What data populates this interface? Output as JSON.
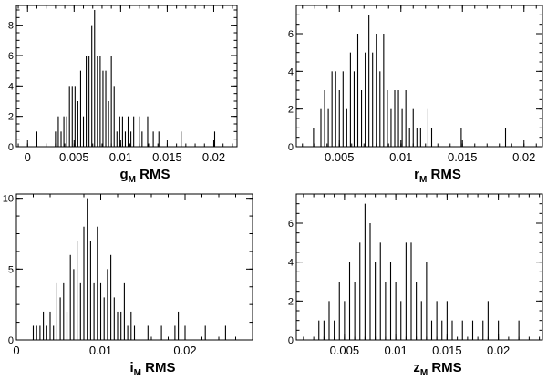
{
  "chart_data": [
    {
      "type": "histogram",
      "xlabel": "g",
      "xlabel_subscript": "M",
      "xlabel_suffix": " RMS",
      "xlim": [
        -0.0012,
        0.0225
      ],
      "ylim": [
        0,
        9.3
      ],
      "x_ticks": [
        0,
        0.005,
        0.01,
        0.015,
        0.02
      ],
      "x_tick_labels": [
        "0",
        "0.005",
        "0.01",
        "0.015",
        "0.02"
      ],
      "y_ticks": [
        0,
        2,
        4,
        6,
        8
      ],
      "y_tick_labels": [
        "0",
        "2",
        "4",
        "6",
        "8"
      ],
      "bins": [
        {
          "x": 0.001,
          "y": 1
        },
        {
          "x": 0.003,
          "y": 1
        },
        {
          "x": 0.0033,
          "y": 2
        },
        {
          "x": 0.0036,
          "y": 1
        },
        {
          "x": 0.0039,
          "y": 2
        },
        {
          "x": 0.0042,
          "y": 2
        },
        {
          "x": 0.0045,
          "y": 4
        },
        {
          "x": 0.0048,
          "y": 4
        },
        {
          "x": 0.0051,
          "y": 4
        },
        {
          "x": 0.0054,
          "y": 3
        },
        {
          "x": 0.0057,
          "y": 5
        },
        {
          "x": 0.006,
          "y": 2
        },
        {
          "x": 0.0063,
          "y": 6
        },
        {
          "x": 0.0066,
          "y": 6
        },
        {
          "x": 0.0069,
          "y": 8
        },
        {
          "x": 0.0072,
          "y": 9
        },
        {
          "x": 0.0075,
          "y": 6
        },
        {
          "x": 0.0078,
          "y": 6
        },
        {
          "x": 0.0081,
          "y": 5
        },
        {
          "x": 0.0084,
          "y": 5
        },
        {
          "x": 0.0087,
          "y": 3
        },
        {
          "x": 0.009,
          "y": 6
        },
        {
          "x": 0.0093,
          "y": 4
        },
        {
          "x": 0.0096,
          "y": 1
        },
        {
          "x": 0.0099,
          "y": 2
        },
        {
          "x": 0.0102,
          "y": 2
        },
        {
          "x": 0.0105,
          "y": 1
        },
        {
          "x": 0.0108,
          "y": 2
        },
        {
          "x": 0.0111,
          "y": 1
        },
        {
          "x": 0.0114,
          "y": 2
        },
        {
          "x": 0.012,
          "y": 2
        },
        {
          "x": 0.0123,
          "y": 1
        },
        {
          "x": 0.0129,
          "y": 2
        },
        {
          "x": 0.0135,
          "y": 1
        },
        {
          "x": 0.0141,
          "y": 1
        },
        {
          "x": 0.0165,
          "y": 1
        },
        {
          "x": 0.0201,
          "y": 1
        }
      ]
    },
    {
      "type": "histogram",
      "xlabel": "r",
      "xlabel_subscript": "M",
      "xlabel_suffix": " RMS",
      "xlim": [
        0.0015,
        0.0215
      ],
      "ylim": [
        0,
        7.5
      ],
      "x_ticks": [
        0.005,
        0.01,
        0.015,
        0.02
      ],
      "x_tick_labels": [
        "0.005",
        "0.01",
        "0.015",
        "0.02"
      ],
      "y_ticks": [
        0,
        2,
        4,
        6
      ],
      "y_tick_labels": [
        "0",
        "2",
        "4",
        "6"
      ],
      "bins": [
        {
          "x": 0.0029,
          "y": 1
        },
        {
          "x": 0.0035,
          "y": 2
        },
        {
          "x": 0.0038,
          "y": 3
        },
        {
          "x": 0.0041,
          "y": 2
        },
        {
          "x": 0.0044,
          "y": 4
        },
        {
          "x": 0.0047,
          "y": 4
        },
        {
          "x": 0.005,
          "y": 3
        },
        {
          "x": 0.0053,
          "y": 4
        },
        {
          "x": 0.0056,
          "y": 2
        },
        {
          "x": 0.0059,
          "y": 5
        },
        {
          "x": 0.0062,
          "y": 4
        },
        {
          "x": 0.0065,
          "y": 6
        },
        {
          "x": 0.0068,
          "y": 3
        },
        {
          "x": 0.0071,
          "y": 5
        },
        {
          "x": 0.0074,
          "y": 7
        },
        {
          "x": 0.0077,
          "y": 5
        },
        {
          "x": 0.008,
          "y": 6
        },
        {
          "x": 0.0083,
          "y": 4
        },
        {
          "x": 0.0086,
          "y": 6
        },
        {
          "x": 0.0089,
          "y": 3
        },
        {
          "x": 0.0092,
          "y": 2
        },
        {
          "x": 0.0095,
          "y": 3
        },
        {
          "x": 0.0098,
          "y": 3
        },
        {
          "x": 0.0101,
          "y": 2
        },
        {
          "x": 0.0104,
          "y": 3
        },
        {
          "x": 0.0107,
          "y": 1
        },
        {
          "x": 0.011,
          "y": 2
        },
        {
          "x": 0.0113,
          "y": 1
        },
        {
          "x": 0.0116,
          "y": 1
        },
        {
          "x": 0.0122,
          "y": 2
        },
        {
          "x": 0.0125,
          "y": 1
        },
        {
          "x": 0.0149,
          "y": 1
        },
        {
          "x": 0.0185,
          "y": 1
        }
      ]
    },
    {
      "type": "histogram",
      "xlabel": "i",
      "xlabel_subscript": "M",
      "xlabel_suffix": " RMS",
      "xlim": [
        0,
        0.028
      ],
      "ylim": [
        0,
        10.3
      ],
      "x_ticks": [
        0,
        0.01,
        0.02
      ],
      "x_tick_labels": [
        "0",
        "0.01",
        "0.02"
      ],
      "y_ticks": [
        0,
        5,
        10
      ],
      "y_tick_labels": [
        "0",
        "5",
        "10"
      ],
      "bins": [
        {
          "x": 0.002,
          "y": 1
        },
        {
          "x": 0.0024,
          "y": 1
        },
        {
          "x": 0.0028,
          "y": 1
        },
        {
          "x": 0.0032,
          "y": 2
        },
        {
          "x": 0.0036,
          "y": 1
        },
        {
          "x": 0.004,
          "y": 2
        },
        {
          "x": 0.0044,
          "y": 1
        },
        {
          "x": 0.0048,
          "y": 4
        },
        {
          "x": 0.0052,
          "y": 3
        },
        {
          "x": 0.0056,
          "y": 4
        },
        {
          "x": 0.006,
          "y": 2
        },
        {
          "x": 0.0064,
          "y": 6
        },
        {
          "x": 0.0068,
          "y": 5
        },
        {
          "x": 0.0072,
          "y": 7
        },
        {
          "x": 0.0076,
          "y": 4
        },
        {
          "x": 0.008,
          "y": 8
        },
        {
          "x": 0.0084,
          "y": 10
        },
        {
          "x": 0.0088,
          "y": 7
        },
        {
          "x": 0.0092,
          "y": 4
        },
        {
          "x": 0.0096,
          "y": 8
        },
        {
          "x": 0.01,
          "y": 4
        },
        {
          "x": 0.0104,
          "y": 3
        },
        {
          "x": 0.0108,
          "y": 5
        },
        {
          "x": 0.0112,
          "y": 6
        },
        {
          "x": 0.0116,
          "y": 3
        },
        {
          "x": 0.012,
          "y": 2
        },
        {
          "x": 0.0124,
          "y": 2
        },
        {
          "x": 0.0128,
          "y": 4
        },
        {
          "x": 0.0132,
          "y": 1
        },
        {
          "x": 0.0136,
          "y": 2
        },
        {
          "x": 0.014,
          "y": 1
        },
        {
          "x": 0.0156,
          "y": 1
        },
        {
          "x": 0.0172,
          "y": 1
        },
        {
          "x": 0.0188,
          "y": 1
        },
        {
          "x": 0.0192,
          "y": 2
        },
        {
          "x": 0.02,
          "y": 1
        },
        {
          "x": 0.0224,
          "y": 1
        },
        {
          "x": 0.0248,
          "y": 1
        }
      ]
    },
    {
      "type": "histogram",
      "xlabel": "z",
      "xlabel_subscript": "M",
      "xlabel_suffix": " RMS",
      "xlim": [
        0.0003,
        0.0243
      ],
      "ylim": [
        0,
        7.5
      ],
      "x_ticks": [
        0.005,
        0.01,
        0.015,
        0.02
      ],
      "x_tick_labels": [
        "0.005",
        "0.01",
        "0.015",
        "0.02"
      ],
      "y_ticks": [
        0,
        2,
        4,
        6
      ],
      "y_tick_labels": [
        "0",
        "2",
        "4",
        "6"
      ],
      "bins": [
        {
          "x": 0.0025,
          "y": 1
        },
        {
          "x": 0.003,
          "y": 1
        },
        {
          "x": 0.0035,
          "y": 2
        },
        {
          "x": 0.004,
          "y": 1
        },
        {
          "x": 0.0045,
          "y": 3
        },
        {
          "x": 0.005,
          "y": 2
        },
        {
          "x": 0.0055,
          "y": 4
        },
        {
          "x": 0.006,
          "y": 3
        },
        {
          "x": 0.0065,
          "y": 5
        },
        {
          "x": 0.007,
          "y": 7
        },
        {
          "x": 0.0075,
          "y": 6
        },
        {
          "x": 0.008,
          "y": 4
        },
        {
          "x": 0.0085,
          "y": 5
        },
        {
          "x": 0.009,
          "y": 3
        },
        {
          "x": 0.0095,
          "y": 4
        },
        {
          "x": 0.01,
          "y": 3
        },
        {
          "x": 0.0105,
          "y": 2
        },
        {
          "x": 0.011,
          "y": 5
        },
        {
          "x": 0.0115,
          "y": 5
        },
        {
          "x": 0.012,
          "y": 3
        },
        {
          "x": 0.0125,
          "y": 2
        },
        {
          "x": 0.013,
          "y": 4
        },
        {
          "x": 0.0135,
          "y": 1
        },
        {
          "x": 0.014,
          "y": 2
        },
        {
          "x": 0.0145,
          "y": 1
        },
        {
          "x": 0.015,
          "y": 2
        },
        {
          "x": 0.0155,
          "y": 1
        },
        {
          "x": 0.0165,
          "y": 1
        },
        {
          "x": 0.0175,
          "y": 1
        },
        {
          "x": 0.0185,
          "y": 1
        },
        {
          "x": 0.019,
          "y": 2
        },
        {
          "x": 0.02,
          "y": 1
        },
        {
          "x": 0.022,
          "y": 1
        }
      ]
    }
  ]
}
